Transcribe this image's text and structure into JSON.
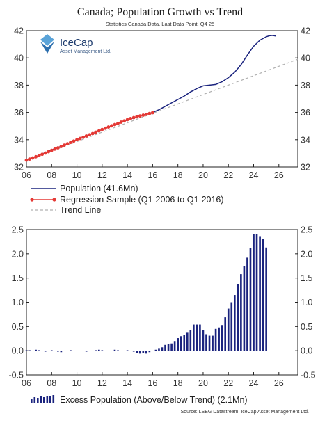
{
  "chart_data": [
    {
      "type": "line",
      "title": "Canada; Population Growth vs Trend",
      "subtitle": "Statistics Canada Data, Last Data Point, Q4 25",
      "ylim": [
        32,
        42
      ],
      "yticks": [
        "32",
        "34",
        "36",
        "38",
        "40",
        "42"
      ],
      "xlim": [
        2006,
        2027.5
      ],
      "xticks": [
        {
          "value": 2006,
          "label": "06"
        },
        {
          "value": 2008,
          "label": "08"
        },
        {
          "value": 2010,
          "label": "10"
        },
        {
          "value": 2012,
          "label": "12"
        },
        {
          "value": 2014,
          "label": "14"
        },
        {
          "value": 2016,
          "label": "16"
        },
        {
          "value": 2018,
          "label": "18"
        },
        {
          "value": 2020,
          "label": "20"
        },
        {
          "value": 2022,
          "label": "22"
        },
        {
          "value": 2024,
          "label": "24"
        },
        {
          "value": 2026,
          "label": "26"
        }
      ],
      "series": [
        {
          "name": "Population (41.6Mn)",
          "color": "#1a237e",
          "style": "solid",
          "x": [
            2006.0,
            2007.0,
            2008.0,
            2009.0,
            2010.0,
            2011.0,
            2012.0,
            2013.0,
            2014.0,
            2015.0,
            2016.0,
            2016.5,
            2017.0,
            2017.5,
            2018.0,
            2018.5,
            2019.0,
            2019.5,
            2020.0,
            2020.5,
            2021.0,
            2021.5,
            2022.0,
            2022.5,
            2023.0,
            2023.5,
            2024.0,
            2024.5,
            2025.0,
            2025.25,
            2025.5,
            2025.75
          ],
          "y": [
            32.5,
            32.85,
            33.25,
            33.6,
            34.0,
            34.35,
            34.75,
            35.1,
            35.45,
            35.75,
            36.0,
            36.2,
            36.45,
            36.7,
            36.95,
            37.2,
            37.5,
            37.75,
            37.95,
            38.0,
            38.05,
            38.25,
            38.55,
            38.95,
            39.5,
            40.2,
            40.85,
            41.3,
            41.55,
            41.62,
            41.65,
            41.6
          ]
        },
        {
          "name": "Regression Sample (Q1-2006 to Q1-2016)",
          "color": "#e53935",
          "style": "markers",
          "x": [
            2006.0,
            2006.25,
            2006.5,
            2006.75,
            2007.0,
            2007.25,
            2007.5,
            2007.75,
            2008.0,
            2008.25,
            2008.5,
            2008.75,
            2009.0,
            2009.25,
            2009.5,
            2009.75,
            2010.0,
            2010.25,
            2010.5,
            2010.75,
            2011.0,
            2011.25,
            2011.5,
            2011.75,
            2012.0,
            2012.25,
            2012.5,
            2012.75,
            2013.0,
            2013.25,
            2013.5,
            2013.75,
            2014.0,
            2014.25,
            2014.5,
            2014.75,
            2015.0,
            2015.25,
            2015.5,
            2015.75,
            2016.0
          ],
          "y": [
            32.5,
            32.58,
            32.66,
            32.75,
            32.84,
            32.93,
            33.02,
            33.12,
            33.22,
            33.31,
            33.4,
            33.5,
            33.6,
            33.7,
            33.8,
            33.9,
            34.0,
            34.09,
            34.18,
            34.27,
            34.36,
            34.45,
            34.55,
            34.65,
            34.75,
            34.84,
            34.93,
            35.02,
            35.11,
            35.2,
            35.29,
            35.38,
            35.47,
            35.55,
            35.62,
            35.68,
            35.74,
            35.8,
            35.86,
            35.92,
            35.98
          ]
        },
        {
          "name": "Trend Line",
          "color": "#b0b0b0",
          "style": "dashed",
          "x": [
            2006.0,
            2027.5
          ],
          "y": [
            32.48,
            39.9
          ]
        }
      ]
    },
    {
      "type": "bar",
      "ylim": [
        -0.5,
        2.5
      ],
      "yticks": [
        "-0.5",
        "0.0",
        "0.5",
        "1.0",
        "1.5",
        "2.0",
        "2.5"
      ],
      "xlim": [
        2006,
        2027.5
      ],
      "xticks": [
        {
          "value": 2006,
          "label": "06"
        },
        {
          "value": 2008,
          "label": "08"
        },
        {
          "value": 2010,
          "label": "10"
        },
        {
          "value": 2012,
          "label": "12"
        },
        {
          "value": 2014,
          "label": "14"
        },
        {
          "value": 2016,
          "label": "16"
        },
        {
          "value": 2018,
          "label": "18"
        },
        {
          "value": 2020,
          "label": "20"
        },
        {
          "value": 2022,
          "label": "22"
        },
        {
          "value": 2024,
          "label": "24"
        },
        {
          "value": 2026,
          "label": "26"
        }
      ],
      "series": [
        {
          "name": "Excess Population (Above/Below Trend) (2.1Mn)",
          "color": "#1a237e",
          "x_start": 2006.0,
          "x_step": 0.25,
          "values": [
            0.01,
            0.01,
            0.0,
            0.02,
            0.01,
            -0.01,
            -0.02,
            -0.01,
            0.01,
            0.0,
            -0.02,
            -0.03,
            -0.01,
            0.0,
            0.01,
            -0.01,
            0.0,
            0.0,
            -0.01,
            -0.02,
            -0.01,
            0.0,
            0.01,
            0.02,
            0.01,
            0.0,
            -0.01,
            0.0,
            0.02,
            0.01,
            0.0,
            -0.01,
            0.01,
            0.0,
            -0.02,
            -0.05,
            -0.06,
            -0.05,
            -0.06,
            -0.03,
            -0.01,
            0.02,
            0.04,
            0.07,
            0.12,
            0.14,
            0.15,
            0.2,
            0.26,
            0.3,
            0.33,
            0.37,
            0.42,
            0.54,
            0.54,
            0.54,
            0.42,
            0.34,
            0.31,
            0.31,
            0.45,
            0.48,
            0.53,
            0.69,
            0.87,
            1.0,
            1.15,
            1.38,
            1.58,
            1.75,
            1.92,
            2.12,
            2.41,
            2.4,
            2.35,
            2.3,
            2.13
          ]
        }
      ]
    }
  ],
  "logo": {
    "name": "IceCap",
    "tagline": "Asset Management Ltd."
  },
  "source": "Source: LSEG Datastream, IceCap Asset Management Ltd."
}
